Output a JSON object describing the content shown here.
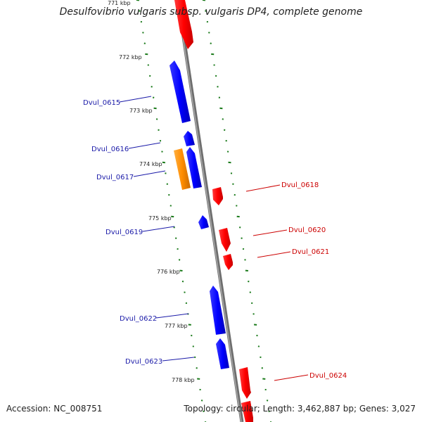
{
  "title": "Desulfovibrio vulgaris subsp. vulgaris DP4, complete genome",
  "footer": {
    "accession": "Accession: NC_008751",
    "stats": "Topology: circular; Length: 3,462,887 bp; Genes: 3,027"
  },
  "colors": {
    "backbone": "#808080",
    "tick": "#1a7a1a",
    "forward": "#ff0000",
    "reverse": "#0000ff",
    "highlight": "#ff8c00",
    "label_left": "#1a1aa8",
    "label_right": "#cc0000"
  },
  "ticks": [
    "771 kbp",
    "772 kbp",
    "773 kbp",
    "774 kbp",
    "775 kbp",
    "776 kbp",
    "777 kbp",
    "778 kbp"
  ],
  "genes_left": [
    {
      "name": "Dvul_0615"
    },
    {
      "name": "Dvul_0616"
    },
    {
      "name": "Dvul_0617"
    },
    {
      "name": "Dvul_0619"
    },
    {
      "name": "Dvul_0622"
    },
    {
      "name": "Dvul_0623"
    }
  ],
  "genes_right": [
    {
      "name": "Dvul_0618"
    },
    {
      "name": "Dvul_0620"
    },
    {
      "name": "Dvul_0621"
    },
    {
      "name": "Dvul_0624"
    }
  ]
}
